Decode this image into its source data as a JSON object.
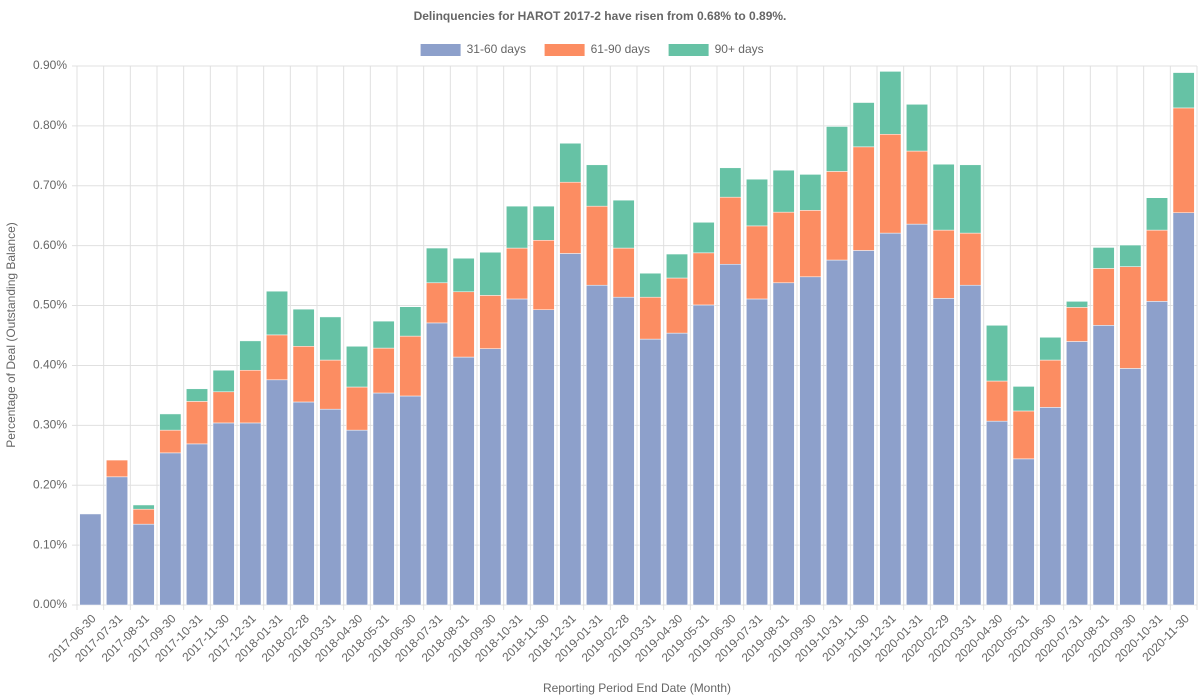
{
  "chart_data": {
    "type": "stacked-bar",
    "title": "Delinquencies for HAROT 2017-2 have risen from 0.68% to 0.89%.",
    "x_label": "Reporting Period End Date (Month)",
    "y_label": "Percentage of Deal (Outstanding Balance)",
    "categories": [
      "2017-06-30",
      "2017-07-31",
      "2017-08-31",
      "2017-09-30",
      "2017-10-31",
      "2017-11-30",
      "2017-12-31",
      "2018-01-31",
      "2018-02-28",
      "2018-03-31",
      "2018-04-30",
      "2018-05-31",
      "2018-06-30",
      "2018-07-31",
      "2018-08-31",
      "2018-09-30",
      "2018-10-31",
      "2018-11-30",
      "2018-12-31",
      "2019-01-31",
      "2019-02-28",
      "2019-03-31",
      "2019-04-30",
      "2019-05-31",
      "2019-06-30",
      "2019-07-31",
      "2019-08-31",
      "2019-09-30",
      "2019-10-31",
      "2019-11-30",
      "2019-12-31",
      "2020-01-31",
      "2020-02-29",
      "2020-03-31",
      "2020-04-30",
      "2020-05-31",
      "2020-06-30",
      "2020-07-31",
      "2020-08-31",
      "2020-09-30",
      "2020-10-31",
      "2020-11-30"
    ],
    "series": [
      {
        "name": "31-60 days",
        "color": "#8da0cb",
        "values": [
          0.152,
          0.214,
          0.135,
          0.254,
          0.269,
          0.304,
          0.304,
          0.376,
          0.339,
          0.327,
          0.292,
          0.354,
          0.349,
          0.471,
          0.414,
          0.428,
          0.511,
          0.493,
          0.587,
          0.534,
          0.514,
          0.444,
          0.454,
          0.501,
          0.569,
          0.511,
          0.538,
          0.548,
          0.576,
          0.592,
          0.621,
          0.636,
          0.512,
          0.534,
          0.307,
          0.244,
          0.33,
          0.44,
          0.467,
          0.395,
          0.507,
          0.655
        ]
      },
      {
        "name": "61-90 days",
        "color": "#fc8d62",
        "values": [
          0,
          0.028,
          0.025,
          0.038,
          0.071,
          0.052,
          0.088,
          0.075,
          0.093,
          0.082,
          0.072,
          0.075,
          0.1,
          0.067,
          0.109,
          0.089,
          0.085,
          0.116,
          0.119,
          0.132,
          0.082,
          0.07,
          0.092,
          0.087,
          0.112,
          0.122,
          0.118,
          0.111,
          0.148,
          0.173,
          0.165,
          0.122,
          0.114,
          0.087,
          0.067,
          0.08,
          0.079,
          0.057,
          0.095,
          0.17,
          0.119,
          0.175
        ]
      },
      {
        "name": "90+ days",
        "color": "#66c2a5",
        "values": [
          0,
          0,
          0.007,
          0.027,
          0.021,
          0.036,
          0.049,
          0.073,
          0.062,
          0.072,
          0.068,
          0.045,
          0.049,
          0.058,
          0.056,
          0.072,
          0.07,
          0.057,
          0.065,
          0.069,
          0.08,
          0.04,
          0.04,
          0.051,
          0.049,
          0.078,
          0.07,
          0.06,
          0.075,
          0.074,
          0.105,
          0.078,
          0.11,
          0.114,
          0.093,
          0.041,
          0.038,
          0.01,
          0.035,
          0.036,
          0.054,
          0.059
        ]
      }
    ],
    "ylim": [
      0,
      0.9
    ],
    "yticks": [
      {
        "value": 0,
        "label": "0.00%"
      },
      {
        "value": 0.1,
        "label": "0.10%"
      },
      {
        "value": 0.2,
        "label": "0.20%"
      },
      {
        "value": 0.3,
        "label": "0.30%"
      },
      {
        "value": 0.4,
        "label": "0.40%"
      },
      {
        "value": 0.5,
        "label": "0.50%"
      },
      {
        "value": 0.6,
        "label": "0.60%"
      },
      {
        "value": 0.7,
        "label": "0.70%"
      },
      {
        "value": 0.8,
        "label": "0.80%"
      },
      {
        "value": 0.9,
        "label": "0.90%"
      }
    ],
    "grid": true,
    "legend": "top"
  }
}
